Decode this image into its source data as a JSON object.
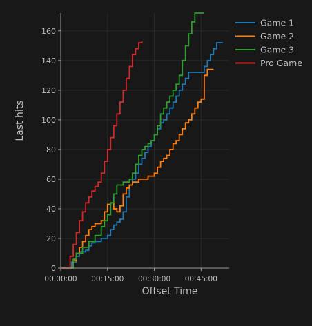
{
  "chart_data": {
    "type": "line",
    "xlabel": "Offset Time",
    "ylabel": "Last hits",
    "x_unit": "minutes",
    "xlim": [
      0,
      54
    ],
    "ylim": [
      0,
      172
    ],
    "x_ticks": [
      {
        "value": 0,
        "label": "00:00:00"
      },
      {
        "value": 15,
        "label": "00:15:00"
      },
      {
        "value": 30,
        "label": "00:30:00"
      },
      {
        "value": 45,
        "label": "00:45:00"
      }
    ],
    "y_ticks": [
      0,
      20,
      40,
      60,
      80,
      100,
      120,
      140,
      160
    ],
    "grid": true,
    "legend_position": "top-right",
    "series": [
      {
        "name": "Game 1",
        "color": "#1f77b4",
        "points": [
          [
            0,
            0
          ],
          [
            3,
            0
          ],
          [
            3.5,
            4
          ],
          [
            5,
            8
          ],
          [
            6,
            11
          ],
          [
            8,
            12
          ],
          [
            9,
            15
          ],
          [
            10,
            17
          ],
          [
            11,
            18
          ],
          [
            13,
            20
          ],
          [
            15,
            22
          ],
          [
            16,
            26
          ],
          [
            17,
            29
          ],
          [
            18,
            31
          ],
          [
            19,
            33
          ],
          [
            20,
            38
          ],
          [
            21,
            48
          ],
          [
            22,
            56
          ],
          [
            23,
            60
          ],
          [
            24,
            64
          ],
          [
            25,
            70
          ],
          [
            26,
            74
          ],
          [
            27,
            78
          ],
          [
            28,
            82
          ],
          [
            29,
            86
          ],
          [
            30,
            90
          ],
          [
            31,
            94
          ],
          [
            32,
            98
          ],
          [
            33,
            100
          ],
          [
            34,
            104
          ],
          [
            35,
            108
          ],
          [
            36,
            112
          ],
          [
            37,
            116
          ],
          [
            38,
            120
          ],
          [
            39,
            124
          ],
          [
            40,
            128
          ],
          [
            41,
            132
          ],
          [
            45,
            132
          ],
          [
            46,
            136
          ],
          [
            47,
            140
          ],
          [
            48,
            144
          ],
          [
            49,
            148
          ],
          [
            50,
            152
          ],
          [
            52,
            152
          ]
        ]
      },
      {
        "name": "Game 2",
        "color": "#ff7f0e",
        "points": [
          [
            0,
            0
          ],
          [
            3,
            0
          ],
          [
            4,
            5
          ],
          [
            5,
            10
          ],
          [
            6,
            14
          ],
          [
            7,
            18
          ],
          [
            8,
            22
          ],
          [
            9,
            26
          ],
          [
            10,
            28
          ],
          [
            11,
            30
          ],
          [
            13,
            32
          ],
          [
            14,
            38
          ],
          [
            15,
            43
          ],
          [
            16,
            44
          ],
          [
            17,
            40
          ],
          [
            18,
            38
          ],
          [
            19,
            42
          ],
          [
            20,
            50
          ],
          [
            21,
            54
          ],
          [
            22,
            56
          ],
          [
            23,
            58
          ],
          [
            25,
            60
          ],
          [
            28,
            62
          ],
          [
            30,
            64
          ],
          [
            31,
            68
          ],
          [
            32,
            72
          ],
          [
            33,
            74
          ],
          [
            34,
            76
          ],
          [
            35,
            80
          ],
          [
            36,
            84
          ],
          [
            37,
            86
          ],
          [
            38,
            90
          ],
          [
            39,
            94
          ],
          [
            40,
            98
          ],
          [
            41,
            100
          ],
          [
            42,
            104
          ],
          [
            43,
            108
          ],
          [
            44,
            112
          ],
          [
            45,
            114
          ],
          [
            46,
            130
          ],
          [
            47,
            134
          ],
          [
            49,
            134
          ]
        ]
      },
      {
        "name": "Game 3",
        "color": "#2ca02c",
        "points": [
          [
            0,
            0
          ],
          [
            3,
            0
          ],
          [
            4,
            6
          ],
          [
            5,
            10
          ],
          [
            7,
            14
          ],
          [
            9,
            18
          ],
          [
            11,
            22
          ],
          [
            13,
            28
          ],
          [
            14,
            32
          ],
          [
            15,
            36
          ],
          [
            16,
            44
          ],
          [
            17,
            50
          ],
          [
            18,
            56
          ],
          [
            20,
            58
          ],
          [
            22,
            60
          ],
          [
            23,
            64
          ],
          [
            24,
            70
          ],
          [
            25,
            76
          ],
          [
            26,
            80
          ],
          [
            27,
            82
          ],
          [
            28,
            84
          ],
          [
            29,
            86
          ],
          [
            30,
            90
          ],
          [
            31,
            96
          ],
          [
            32,
            104
          ],
          [
            33,
            108
          ],
          [
            34,
            112
          ],
          [
            35,
            116
          ],
          [
            36,
            120
          ],
          [
            37,
            124
          ],
          [
            38,
            130
          ],
          [
            39,
            140
          ],
          [
            40,
            150
          ],
          [
            41,
            158
          ],
          [
            42,
            166
          ],
          [
            43,
            172
          ],
          [
            46,
            172
          ]
        ]
      },
      {
        "name": "Pro Game",
        "color": "#d62728",
        "points": [
          [
            0,
            0
          ],
          [
            2,
            0
          ],
          [
            3,
            8
          ],
          [
            4,
            16
          ],
          [
            5,
            24
          ],
          [
            6,
            32
          ],
          [
            7,
            38
          ],
          [
            8,
            44
          ],
          [
            9,
            48
          ],
          [
            10,
            52
          ],
          [
            11,
            55
          ],
          [
            12,
            58
          ],
          [
            13,
            64
          ],
          [
            14,
            72
          ],
          [
            15,
            80
          ],
          [
            16,
            88
          ],
          [
            17,
            96
          ],
          [
            18,
            104
          ],
          [
            19,
            112
          ],
          [
            20,
            120
          ],
          [
            21,
            128
          ],
          [
            22,
            136
          ],
          [
            23,
            144
          ],
          [
            24,
            148
          ],
          [
            25,
            152
          ],
          [
            26,
            153
          ]
        ]
      }
    ]
  }
}
